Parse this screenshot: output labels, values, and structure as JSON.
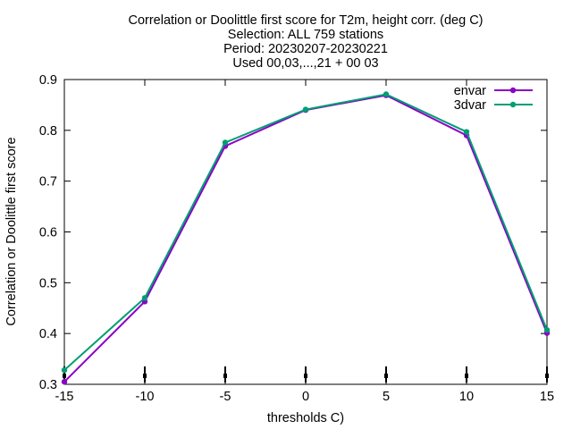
{
  "chart_data": {
    "type": "line",
    "title_lines": [
      "Correlation or Doolittle first score  for T2m, height corr. (deg C)",
      "Selection: ALL    759 stations",
      "Period: 20230207-20230221",
      "Used 00,03,...,21 + 00 03"
    ],
    "xlabel": "thresholds C)",
    "ylabel": "Correlation or Doolittle first score",
    "x": [
      -15,
      -10,
      -5,
      0,
      5,
      10,
      15
    ],
    "xlim": [
      -15,
      15
    ],
    "ylim": [
      0.3,
      0.9
    ],
    "x_ticks": [
      -15,
      -10,
      -5,
      0,
      5,
      10,
      15
    ],
    "x_tick_labels": [
      "-15",
      "-10",
      "-5",
      "0",
      "5",
      "10",
      "15"
    ],
    "y_ticks": [
      0.3,
      0.4,
      0.5,
      0.6,
      0.7,
      0.8,
      0.9
    ],
    "y_tick_labels": [
      "0.3",
      "0.4",
      "0.5",
      "0.6",
      "0.7",
      "0.8",
      "0.9"
    ],
    "grid": false,
    "legend_position": "top-right",
    "series": [
      {
        "name": "envar",
        "color": "#8b00c8",
        "values": [
          0.305,
          0.463,
          0.769,
          0.84,
          0.869,
          0.79,
          0.401
        ]
      },
      {
        "name": "3dvar",
        "color": "#009e73",
        "values": [
          0.328,
          0.47,
          0.776,
          0.841,
          0.871,
          0.797,
          0.407
        ]
      }
    ]
  }
}
